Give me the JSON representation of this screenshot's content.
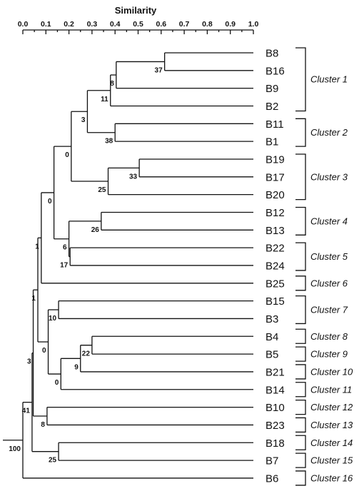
{
  "axis": {
    "title": "Similarity",
    "ticks": [
      "0.0",
      "0.1",
      "0.2",
      "0.3",
      "0.4",
      "0.5",
      "0.6",
      "0.7",
      "0.8",
      "0.9",
      "1.0"
    ]
  },
  "leaves": [
    "B8",
    "B16",
    "B9",
    "B2",
    "B11",
    "B1",
    "B19",
    "B17",
    "B20",
    "B12",
    "B13",
    "B22",
    "B24",
    "B25",
    "B15",
    "B3",
    "B4",
    "B5",
    "B21",
    "B14",
    "B10",
    "B23",
    "B18",
    "B7",
    "B6"
  ],
  "tree": {
    "sim": 0.0,
    "boot": "100",
    "children": [
      {
        "sim": 0.04,
        "boot": "41",
        "children": [
          {
            "sim": 0.045,
            "boot": "3",
            "children": [
              {
                "sim": 0.065,
                "boot": "1",
                "children": [
                  {
                    "sim": 0.08,
                    "boot": "1",
                    "children": [
                      {
                        "sim": 0.135,
                        "boot": "0",
                        "children": [
                          {
                            "sim": 0.21,
                            "boot": "0",
                            "children": [
                              {
                                "sim": 0.28,
                                "boot": "3",
                                "children": [
                                  {
                                    "sim": 0.38,
                                    "boot": "11",
                                    "children": [
                                      {
                                        "sim": 0.405,
                                        "boot": "8",
                                        "children": [
                                          {
                                            "sim": 0.615,
                                            "boot": "37",
                                            "children": [
                                              "B8",
                                              "B16"
                                            ]
                                          },
                                          "B9"
                                        ]
                                      },
                                      "B2"
                                    ]
                                  },
                                  {
                                    "sim": 0.4,
                                    "boot": "38",
                                    "children": [
                                      "B11",
                                      "B1"
                                    ]
                                  }
                                ]
                              },
                              {
                                "sim": 0.37,
                                "boot": "25",
                                "children": [
                                  {
                                    "sim": 0.505,
                                    "boot": "33",
                                    "children": [
                                      "B19",
                                      "B17"
                                    ]
                                  },
                                  "B20"
                                ]
                              }
                            ]
                          },
                          {
                            "sim": 0.2,
                            "boot": "6",
                            "children": [
                              {
                                "sim": 0.34,
                                "boot": "26",
                                "children": [
                                  "B12",
                                  "B13"
                                ]
                              },
                              {
                                "sim": 0.205,
                                "boot": "17",
                                "children": [
                                  "B22",
                                  "B24"
                                ]
                              }
                            ]
                          }
                        ]
                      },
                      "B25"
                    ]
                  },
                  {
                    "sim": 0.11,
                    "boot": "0",
                    "children": [
                      {
                        "sim": 0.155,
                        "boot": "10",
                        "children": [
                          "B15",
                          "B3"
                        ]
                      },
                      {
                        "sim": 0.165,
                        "boot": "0",
                        "children": [
                          {
                            "sim": 0.25,
                            "boot": "9",
                            "children": [
                              {
                                "sim": 0.3,
                                "boot": "22",
                                "children": [
                                  "B4",
                                  "B5"
                                ]
                              },
                              "B21"
                            ]
                          },
                          "B14"
                        ]
                      }
                    ]
                  }
                ]
              },
              {
                "sim": 0.105,
                "boot": "8",
                "children": [
                  "B10",
                  "B23"
                ]
              }
            ]
          },
          {
            "sim": 0.155,
            "boot": "25",
            "children": [
              "B18",
              "B7"
            ]
          }
        ]
      },
      "B6"
    ]
  },
  "clusters": [
    {
      "label": "Cluster 1",
      "first": 0,
      "last": 3
    },
    {
      "label": "Cluster 2",
      "first": 4,
      "last": 5
    },
    {
      "label": "Cluster 3",
      "first": 6,
      "last": 8
    },
    {
      "label": "Cluster 4",
      "first": 9,
      "last": 10
    },
    {
      "label": "Cluster 5",
      "first": 11,
      "last": 12
    },
    {
      "label": "Cluster 6",
      "first": 13,
      "last": 13
    },
    {
      "label": "Cluster 7",
      "first": 14,
      "last": 15
    },
    {
      "label": "Cluster 8",
      "first": 16,
      "last": 16
    },
    {
      "label": "Cluster 9",
      "first": 17,
      "last": 17
    },
    {
      "label": "Cluster 10",
      "first": 18,
      "last": 18
    },
    {
      "label": "Cluster 11",
      "first": 19,
      "last": 19
    },
    {
      "label": "Cluster 12",
      "first": 20,
      "last": 20
    },
    {
      "label": "Cluster 13",
      "first": 21,
      "last": 21
    },
    {
      "label": "Cluster 14",
      "first": 22,
      "last": 22
    },
    {
      "label": "Cluster 15",
      "first": 23,
      "last": 23
    },
    {
      "label": "Cluster 16",
      "first": 24,
      "last": 24
    }
  ]
}
